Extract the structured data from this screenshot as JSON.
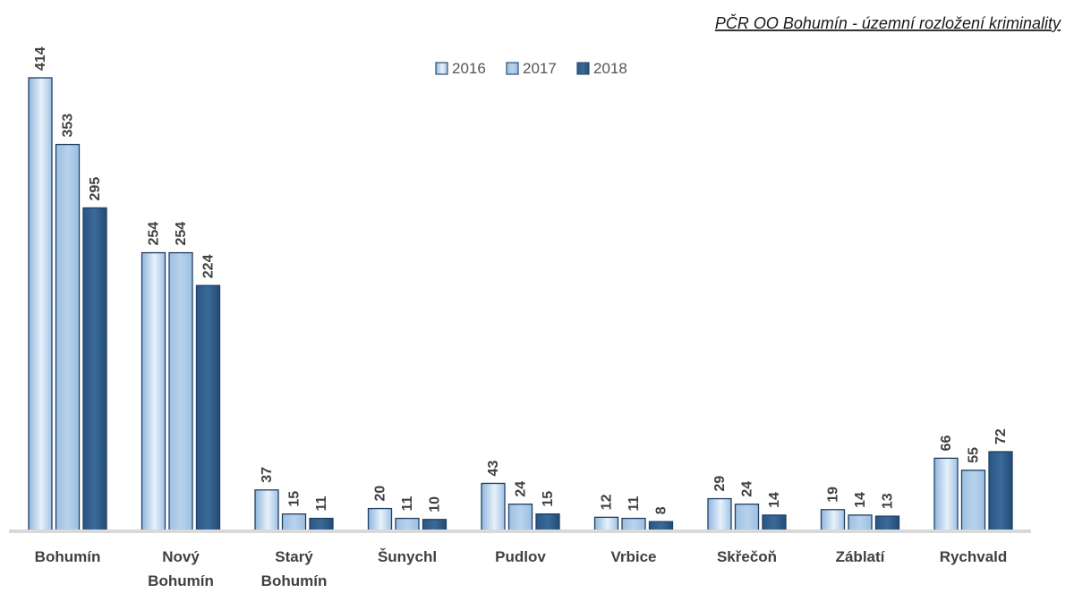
{
  "chart_data": {
    "type": "bar",
    "title": "PČR OO Bohumín - územní rozložení kriminality",
    "categories": [
      [
        "Bohumín"
      ],
      [
        "Nový",
        "Bohumín"
      ],
      [
        "Starý",
        "Bohumín"
      ],
      [
        "Šunychl"
      ],
      [
        "Pudlov"
      ],
      [
        "Vrbice"
      ],
      [
        "Skřečoň"
      ],
      [
        "Záblatí"
      ],
      [
        "Rychvald"
      ]
    ],
    "series": [
      {
        "name": "2016",
        "color": "#bcd6ef",
        "values": [
          414,
          254,
          37,
          20,
          43,
          12,
          29,
          19,
          66
        ]
      },
      {
        "name": "2017",
        "color": "#a7c6e6",
        "values": [
          353,
          254,
          15,
          11,
          24,
          11,
          24,
          14,
          55
        ]
      },
      {
        "name": "2018",
        "color": "#2c5a88",
        "values": [
          295,
          224,
          11,
          10,
          15,
          8,
          14,
          13,
          72
        ]
      }
    ],
    "ylim": [
      0,
      414
    ],
    "grid": false,
    "legend_position": "top-center",
    "data_labels": true
  }
}
